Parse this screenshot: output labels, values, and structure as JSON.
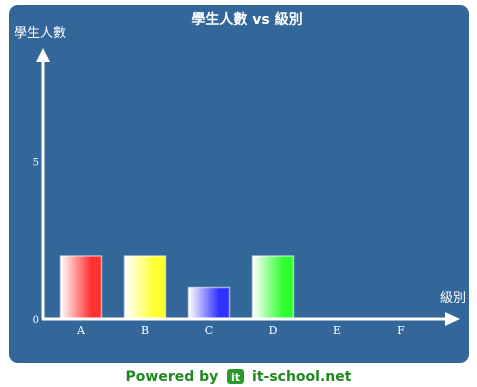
{
  "chart_data": {
    "type": "bar",
    "title": "學生人數 vs 級別",
    "xlabel": "級別",
    "ylabel": "學生人數",
    "categories": [
      "A",
      "B",
      "C",
      "D",
      "E",
      "F"
    ],
    "values": [
      2,
      2,
      1,
      2,
      0,
      0
    ],
    "ylim": [
      0,
      8.6
    ],
    "yticks": [
      0,
      5
    ],
    "bar_colors": [
      "#ff3030",
      "#ffff30",
      "#3030ff",
      "#30ff30",
      "#cccccc",
      "#cccccc"
    ],
    "background": "#336699",
    "grid": false
  },
  "footer": {
    "powered_label": "Powered by",
    "site_name": "it-school.net",
    "logo_icon": "it-logo-icon"
  }
}
